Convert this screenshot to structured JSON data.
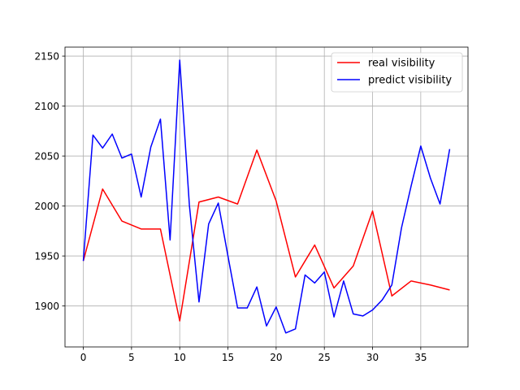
{
  "chart_data": {
    "type": "line",
    "title": "",
    "xlabel": "",
    "ylabel": "",
    "xlim": [
      -1.9,
      39.9
    ],
    "ylim": [
      1859,
      2159
    ],
    "xticks": [
      0,
      5,
      10,
      15,
      20,
      25,
      30,
      35
    ],
    "yticks": [
      1900,
      1950,
      2000,
      2050,
      2100,
      2150
    ],
    "grid": true,
    "legend_position": "top-right",
    "series": [
      {
        "name": "real visibility",
        "color": "#ff0000",
        "x": [
          0,
          2,
          4,
          6,
          8,
          10,
          12,
          14,
          16,
          18,
          20,
          22,
          24,
          26,
          28,
          30,
          32,
          34,
          36,
          38
        ],
        "values": [
          1945,
          2017,
          1985,
          1977,
          1977,
          1885,
          2004,
          2009,
          2002,
          2056,
          2005,
          1929,
          1961,
          1918,
          1940,
          1995,
          1910,
          1925,
          1921,
          1916
        ]
      },
      {
        "name": "predict visibility",
        "color": "#0000ff",
        "x": [
          0,
          1,
          2,
          3,
          4,
          5,
          6,
          7,
          8,
          9,
          10,
          11,
          12,
          13,
          14,
          15,
          16,
          17,
          18,
          19,
          20,
          21,
          22,
          23,
          24,
          25,
          26,
          27,
          28,
          29,
          30,
          31,
          32,
          33,
          34,
          35,
          36,
          37,
          38
        ],
        "values": [
          1945,
          2071,
          2058,
          2072,
          2048,
          2052,
          2009,
          2059,
          2087,
          1966,
          2146,
          2001,
          1904,
          1982,
          2003,
          1950,
          1898,
          1898,
          1919,
          1880,
          1899,
          1873,
          1877,
          1931,
          1923,
          1934,
          1889,
          1925,
          1892,
          1890,
          1896,
          1906,
          1921,
          1978,
          2020,
          2060,
          2028,
          2002,
          2057
        ]
      }
    ]
  }
}
